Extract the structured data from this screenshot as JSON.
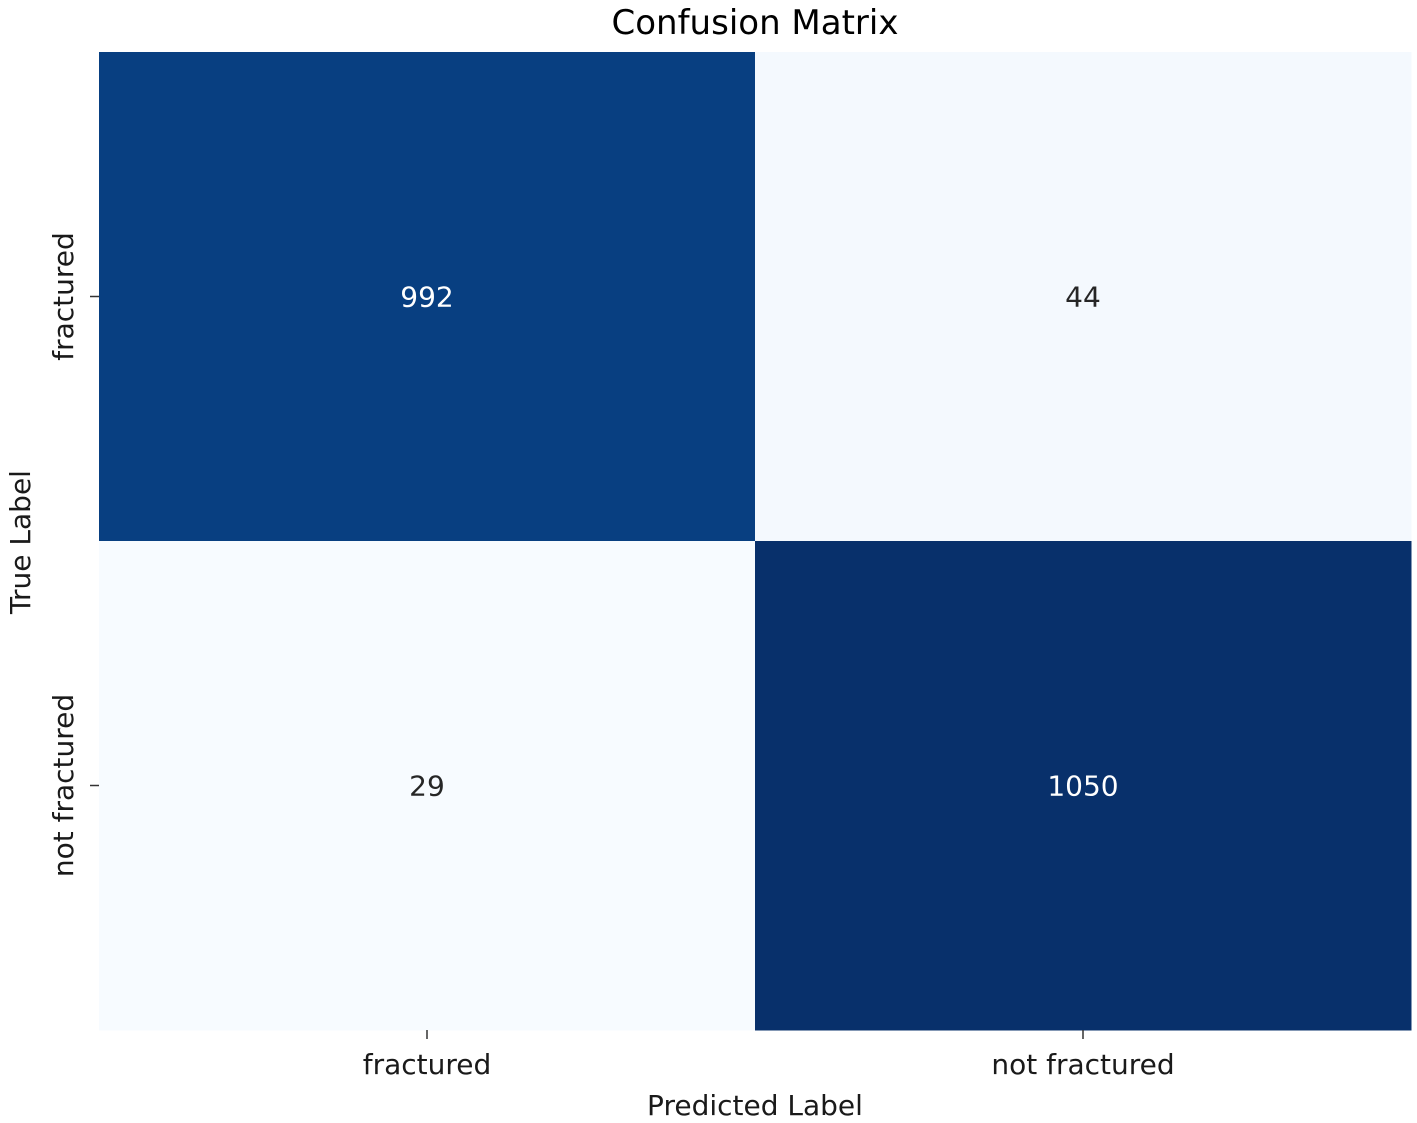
{
  "chart_data": {
    "type": "heatmap",
    "title": "Confusion Matrix",
    "xlabel": "Predicted Label",
    "ylabel": "True Label",
    "x_categories": [
      "fractured",
      "not fractured"
    ],
    "y_categories": [
      "fractured",
      "not fractured"
    ],
    "matrix": [
      [
        992,
        44
      ],
      [
        29,
        1050
      ]
    ],
    "colormap": "Blues",
    "color_low": "#f7fbff",
    "color_high": "#08306b",
    "colorbar": false,
    "grid": false
  }
}
